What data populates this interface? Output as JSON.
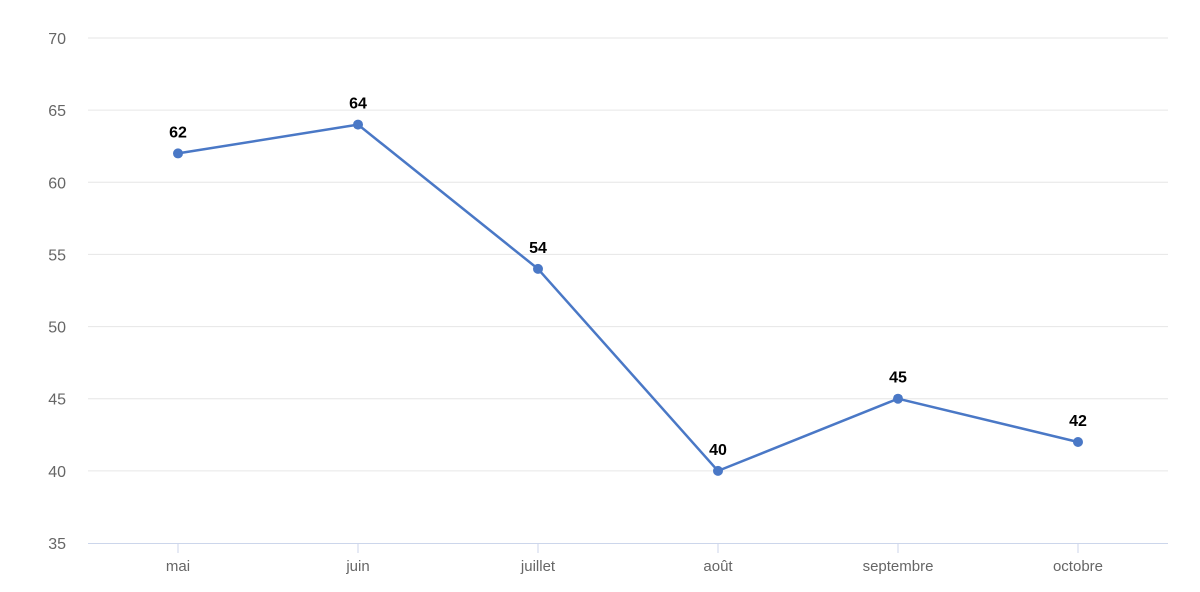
{
  "chart_data": {
    "type": "line",
    "title": "",
    "xlabel": "",
    "ylabel": "",
    "categories": [
      "mai",
      "juin",
      "juillet",
      "août",
      "septembre",
      "octobre"
    ],
    "series": [
      {
        "values": [
          62,
          64,
          54,
          40,
          45,
          42
        ]
      }
    ],
    "ylim": [
      35,
      70
    ],
    "yticks": [
      35,
      40,
      45,
      50,
      55,
      60,
      65,
      70
    ],
    "grid": true,
    "legend": "none",
    "colors": {
      "line": "#4a78c6",
      "grid": "#e6e6e6",
      "axis": "#ccd6eb",
      "tick_text": "#666666",
      "label_text": "#000000"
    }
  }
}
